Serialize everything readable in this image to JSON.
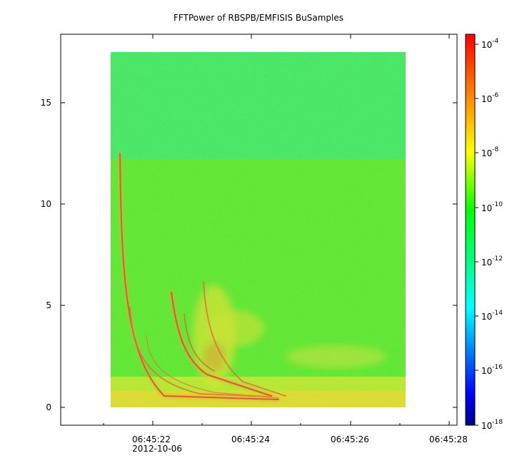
{
  "chart_data": {
    "type": "heatmap",
    "title": "FFTPower of RBSPB/EMFISIS  BuSamples",
    "xlabel": "",
    "ylabel": "",
    "x_axis": {
      "ticks": [
        "06:45:22",
        "06:45:24",
        "06:45:26",
        "06:45:28"
      ],
      "date_label": "2012-10-06",
      "range_seconds": [
        "06:45:20.9",
        "06:45:28.2"
      ],
      "data_range": [
        "06:45:21.1",
        "06:45:27.1"
      ]
    },
    "y_axis": {
      "ticks": [
        0,
        5,
        10,
        15
      ],
      "ylim": [
        -0.9,
        18.3
      ],
      "data_top": 17.5,
      "band_split": 12.2
    },
    "colorbar": {
      "scale": "log",
      "range": [
        1e-18,
        0.0002
      ],
      "ticks": [
        {
          "base": "10",
          "exp": "-4"
        },
        {
          "base": "10",
          "exp": "-6"
        },
        {
          "base": "10",
          "exp": "-8"
        },
        {
          "base": "10",
          "exp": "-10"
        },
        {
          "base": "10",
          "exp": "-12"
        },
        {
          "base": "10",
          "exp": "-14"
        },
        {
          "base": "10",
          "exp": "-16"
        },
        {
          "base": "10",
          "exp": "-18"
        }
      ],
      "colors": [
        "#00008b",
        "#0000ff",
        "#00ffff",
        "#00ff00",
        "#ffff00",
        "#ff8000",
        "#ff0000"
      ]
    },
    "features": {
      "upper_band_level": 1e-11,
      "lower_band_level": 1e-10,
      "low_freq_level": 1e-08,
      "whistlers_at": [
        "06:45:21.3",
        "06:45:22.5",
        "06:45:23.0"
      ],
      "whistler_peak_level": 1e-06
    },
    "grid": false,
    "legend": "colorbar-right"
  }
}
